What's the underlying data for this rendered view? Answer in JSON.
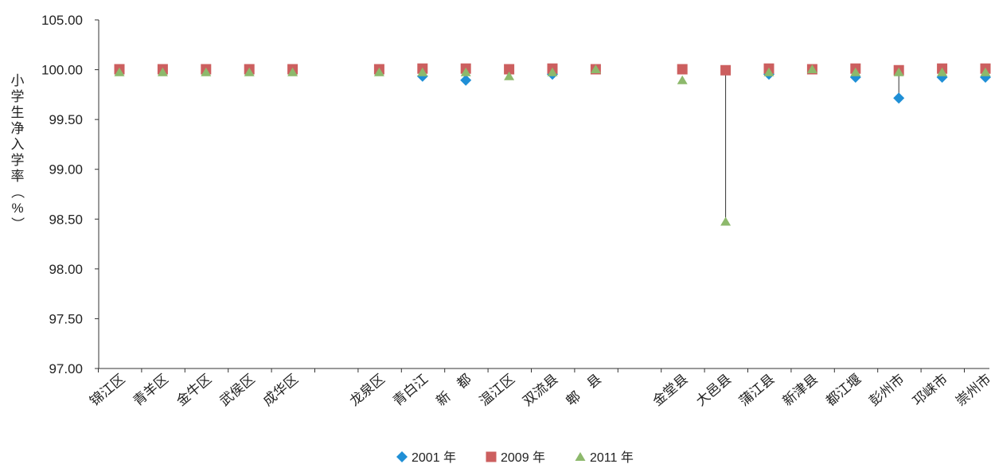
{
  "chart_data": {
    "type": "scatter",
    "title": "",
    "ylabel": "小学生净入学率（%）",
    "ylim": [
      97.0,
      105.0
    ],
    "yticks": [
      "105.00",
      "100.00",
      "99.50",
      "99.00",
      "98.50",
      "98.00",
      "97.50",
      "97.00"
    ],
    "ytick_values": [
      100.5,
      100.0,
      99.5,
      99.0,
      98.5,
      98.0,
      97.5,
      97.0
    ],
    "axis_note": "y-axis is broken between 100.00 and 105.00 (equal tick spacing)",
    "grid": false,
    "legend_position": "bottom",
    "categories": [
      "锦江区",
      "青羊区",
      "金牛区",
      "武侯区",
      "成华区",
      "",
      "龙泉区",
      "青白江",
      "新　都",
      "温江区",
      "双流县",
      "郫　县",
      "",
      "金堂县",
      "大邑县",
      "蒲江县",
      "新津县",
      "都江堰",
      "彭州市",
      "邛崃市",
      "崇州市"
    ],
    "series": [
      {
        "name": "2001 年",
        "marker": "diamond",
        "color": "#1f8fd6",
        "values": [
          null,
          null,
          null,
          null,
          null,
          null,
          null,
          99.93,
          99.89,
          null,
          99.95,
          null,
          null,
          null,
          null,
          99.95,
          null,
          99.92,
          99.71,
          99.92,
          99.92
        ]
      },
      {
        "name": "2009 年",
        "marker": "square",
        "color": "#cc5f5f",
        "values": [
          100.0,
          100.0,
          100.0,
          100.0,
          100.0,
          null,
          100.0,
          100.02,
          100.02,
          100.0,
          100.02,
          100.0,
          null,
          100.0,
          99.99,
          100.02,
          100.0,
          100.02,
          99.99,
          100.02,
          100.02
        ]
      },
      {
        "name": "2011 年",
        "marker": "triangle",
        "color": "#8db96c",
        "values": [
          99.97,
          99.97,
          99.97,
          99.97,
          99.97,
          null,
          99.97,
          99.97,
          99.97,
          99.93,
          99.97,
          100.0,
          null,
          99.89,
          98.47,
          99.97,
          100.0,
          99.97,
          99.97,
          99.97,
          99.97
        ]
      }
    ],
    "drop_lines": [
      {
        "category": "大邑县",
        "from": 99.99,
        "to": 98.47
      },
      {
        "category": "彭州市",
        "from": 99.99,
        "to": 99.71
      }
    ]
  }
}
